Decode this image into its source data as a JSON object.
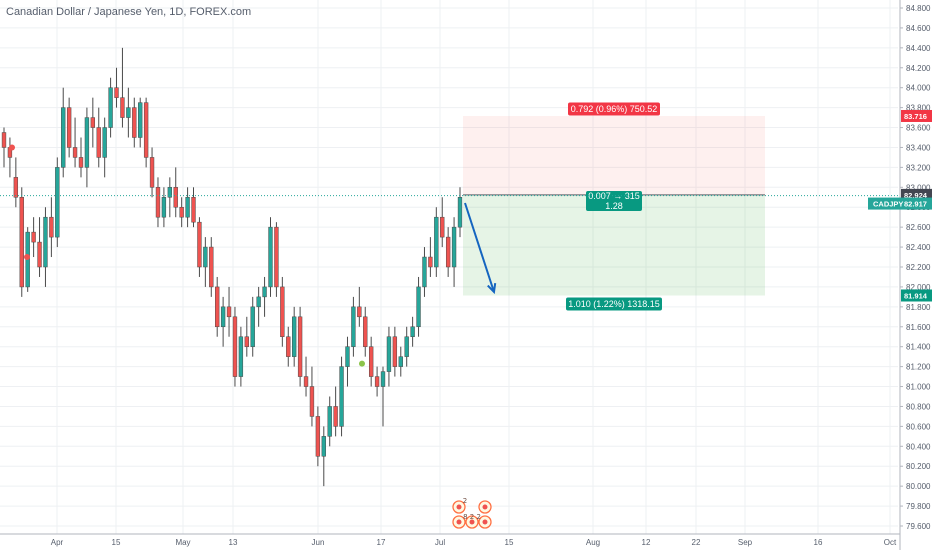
{
  "chart_data": {
    "type": "candlestick",
    "title": "Canadian Dollar / Japanese Yen, 1D, FOREX.com",
    "symbol": "CADJPY",
    "ylim": [
      79.5,
      84.9
    ],
    "y_ticks": [
      79.6,
      79.8,
      80.0,
      80.2,
      80.4,
      80.6,
      80.8,
      81.0,
      81.2,
      81.4,
      81.6,
      81.8,
      82.0,
      82.2,
      82.4,
      82.6,
      82.8,
      83.0,
      83.2,
      83.4,
      83.6,
      83.8,
      84.0,
      84.2,
      84.4,
      84.6,
      84.8
    ],
    "y_tick_labels": [
      "79.600",
      "79.800",
      "80.000",
      "80.200",
      "80.400",
      "80.600",
      "80.800",
      "81.000",
      "81.200",
      "81.400",
      "81.600",
      "81.800",
      "82.000",
      "82.200",
      "82.400",
      "82.600",
      "82.800",
      "83.000",
      "83.200",
      "83.400",
      "83.600",
      "83.800",
      "84.000",
      "84.200",
      "84.400",
      "84.600",
      "84.800"
    ],
    "x_labels": [
      "Apr",
      "15",
      "May",
      "13",
      "Jun",
      "17",
      "Jul",
      "15",
      "Aug",
      "12",
      "22",
      "Sep",
      "16",
      "Oct"
    ],
    "grid": true,
    "colors": {
      "up": "#26a69a",
      "down": "#ef5350",
      "grid": "#eef0f3",
      "axis": "#555d6b",
      "arrow": "#1565c0"
    },
    "candles": [
      [
        83.55,
        83.6,
        83.2,
        83.4
      ],
      [
        83.4,
        83.5,
        83.1,
        83.3
      ],
      [
        83.1,
        83.3,
        82.8,
        82.9
      ],
      [
        82.9,
        83.0,
        81.9,
        82.0
      ],
      [
        82.0,
        82.6,
        81.95,
        82.55
      ],
      [
        82.55,
        82.7,
        82.3,
        82.45
      ],
      [
        82.45,
        82.7,
        82.1,
        82.2
      ],
      [
        82.2,
        82.8,
        82.0,
        82.7
      ],
      [
        82.7,
        82.9,
        82.3,
        82.5
      ],
      [
        82.5,
        83.3,
        82.4,
        83.2
      ],
      [
        83.2,
        84.0,
        83.1,
        83.8
      ],
      [
        83.8,
        83.9,
        83.3,
        83.4
      ],
      [
        83.4,
        83.7,
        83.2,
        83.3
      ],
      [
        83.3,
        83.5,
        83.1,
        83.2
      ],
      [
        83.2,
        83.8,
        83.0,
        83.7
      ],
      [
        83.7,
        83.9,
        83.4,
        83.6
      ],
      [
        83.6,
        83.8,
        83.2,
        83.3
      ],
      [
        83.3,
        83.7,
        83.1,
        83.6
      ],
      [
        83.6,
        84.1,
        83.5,
        84.0
      ],
      [
        84.0,
        84.2,
        83.8,
        83.9
      ],
      [
        83.9,
        84.4,
        83.6,
        83.7
      ],
      [
        83.7,
        84.0,
        83.5,
        83.8
      ],
      [
        83.8,
        83.9,
        83.4,
        83.5
      ],
      [
        83.5,
        83.9,
        83.4,
        83.85
      ],
      [
        83.85,
        83.9,
        83.2,
        83.3
      ],
      [
        83.3,
        83.4,
        82.9,
        83.0
      ],
      [
        83.0,
        83.1,
        82.6,
        82.7
      ],
      [
        82.7,
        83.0,
        82.6,
        82.9
      ],
      [
        82.9,
        83.1,
        82.7,
        83.0
      ],
      [
        83.0,
        83.2,
        82.7,
        82.8
      ],
      [
        82.8,
        82.9,
        82.6,
        82.7
      ],
      [
        82.7,
        83.0,
        82.6,
        82.9
      ],
      [
        82.9,
        83.0,
        82.6,
        82.65
      ],
      [
        82.65,
        82.7,
        82.1,
        82.2
      ],
      [
        82.2,
        82.5,
        82.0,
        82.4
      ],
      [
        82.4,
        82.5,
        81.9,
        82.0
      ],
      [
        82.0,
        82.1,
        81.5,
        81.6
      ],
      [
        81.6,
        81.9,
        81.4,
        81.8
      ],
      [
        81.8,
        82.0,
        81.5,
        81.7
      ],
      [
        81.7,
        81.8,
        81.0,
        81.1
      ],
      [
        81.1,
        81.6,
        81.0,
        81.5
      ],
      [
        81.5,
        81.7,
        81.3,
        81.4
      ],
      [
        81.4,
        81.9,
        81.3,
        81.8
      ],
      [
        81.8,
        82.0,
        81.6,
        81.9
      ],
      [
        81.9,
        82.1,
        81.7,
        82.0
      ],
      [
        82.0,
        82.7,
        81.9,
        82.6
      ],
      [
        82.6,
        82.65,
        81.9,
        82.0
      ],
      [
        82.0,
        82.1,
        81.4,
        81.5
      ],
      [
        81.5,
        81.6,
        81.2,
        81.3
      ],
      [
        81.3,
        81.8,
        81.2,
        81.7
      ],
      [
        81.7,
        81.8,
        81.0,
        81.1
      ],
      [
        81.1,
        81.3,
        80.9,
        81.0
      ],
      [
        81.0,
        81.2,
        80.6,
        80.7
      ],
      [
        80.7,
        80.8,
        80.2,
        80.3
      ],
      [
        80.3,
        80.6,
        80.0,
        80.5
      ],
      [
        80.5,
        80.9,
        80.4,
        80.8
      ],
      [
        80.8,
        81.0,
        80.5,
        80.6
      ],
      [
        80.6,
        81.3,
        80.5,
        81.2
      ],
      [
        81.2,
        81.5,
        81.0,
        81.4
      ],
      [
        81.4,
        81.9,
        81.3,
        81.8
      ],
      [
        81.8,
        82.0,
        81.6,
        81.7
      ],
      [
        81.7,
        81.8,
        81.3,
        81.4
      ],
      [
        81.4,
        81.5,
        81.0,
        81.1
      ],
      [
        81.1,
        81.2,
        80.9,
        81.0
      ],
      [
        81.0,
        81.2,
        80.6,
        81.15
      ],
      [
        81.15,
        81.6,
        81.0,
        81.5
      ],
      [
        81.5,
        81.6,
        81.1,
        81.2
      ],
      [
        81.2,
        81.4,
        81.1,
        81.3
      ],
      [
        81.3,
        81.6,
        81.2,
        81.5
      ],
      [
        81.5,
        81.7,
        81.4,
        81.6
      ],
      [
        81.6,
        82.1,
        81.5,
        82.0
      ],
      [
        82.0,
        82.4,
        81.9,
        82.3
      ],
      [
        82.3,
        82.5,
        82.1,
        82.2
      ],
      [
        82.2,
        82.8,
        82.1,
        82.7
      ],
      [
        82.7,
        82.9,
        82.4,
        82.5
      ],
      [
        82.5,
        82.6,
        82.1,
        82.2
      ],
      [
        82.2,
        82.7,
        82.0,
        82.6
      ],
      [
        82.6,
        83.0,
        82.5,
        82.9
      ]
    ],
    "current_price": 82.917,
    "position": {
      "entry": 82.924,
      "stop": 83.716,
      "target": 81.914,
      "stop_label": "0.792 (0.96%) 750.52",
      "mid_label_1": "0.007 → 315",
      "mid_label_2": "1.28",
      "target_label": "1.010 (1.22%) 1318.15"
    },
    "price_tags": {
      "stop": "83.716",
      "entry": "82.924",
      "symbol": "CADJPY",
      "current": "82.917",
      "target": "81.914"
    },
    "events_label_1": "2",
    "events_label_2": "8 2 2"
  }
}
